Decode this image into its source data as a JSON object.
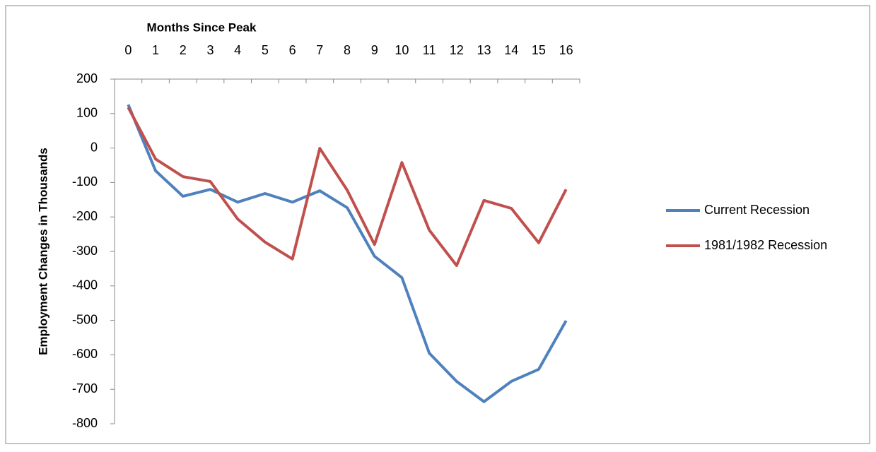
{
  "chart_data": {
    "type": "line",
    "x_axis_title": "Months Since Peak",
    "y_axis_title": "Employment Changes in Thousands",
    "categories": [
      "0",
      "1",
      "2",
      "3",
      "4",
      "5",
      "6",
      "7",
      "8",
      "9",
      "10",
      "11",
      "12",
      "13",
      "14",
      "15",
      "16"
    ],
    "series": [
      {
        "name": "Current Recession",
        "color": "#4f81bd",
        "values": [
          126,
          -66,
          -140,
          -120,
          -157,
          -132,
          -157,
          -124,
          -173,
          -314,
          -376,
          -595,
          -677,
          -736,
          -677,
          -642,
          -501
        ]
      },
      {
        "name": "1981/1982 Recession",
        "color": "#c0504d",
        "values": [
          118,
          -32,
          -83,
          -97,
          -206,
          -273,
          -322,
          -1,
          -122,
          -280,
          -42,
          -238,
          -341,
          -152,
          -175,
          -275,
          -120
        ]
      }
    ],
    "ylim": [
      -800,
      200
    ],
    "yticks": [
      -800,
      -700,
      -600,
      -500,
      -400,
      -300,
      -200,
      -100,
      0,
      100,
      200
    ],
    "legend": "right"
  }
}
